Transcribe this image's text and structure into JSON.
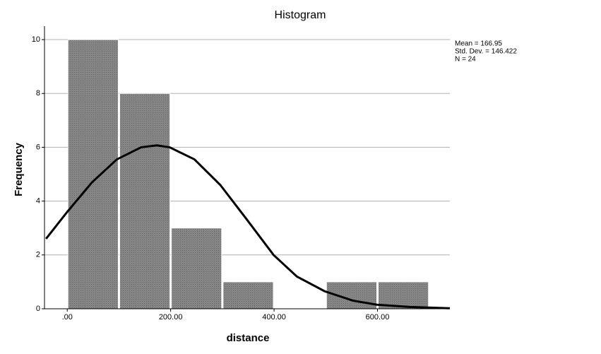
{
  "chart_data": {
    "type": "histogram",
    "title": "Histogram",
    "x_label": "distance",
    "y_label": "Frequency",
    "bins": [
      0,
      100,
      200,
      300,
      400,
      500,
      600,
      700
    ],
    "counts": [
      10,
      8,
      3,
      1,
      0,
      1,
      1
    ],
    "color": "#858585",
    "xlim": [
      -44,
      740
    ],
    "ylim": [
      0,
      10.5
    ],
    "xticks": [
      {
        "value": 0,
        "label": ".00"
      },
      {
        "value": 200,
        "label": "200.00"
      },
      {
        "value": 400,
        "label": "400.00"
      },
      {
        "value": 600,
        "label": "600.00"
      }
    ],
    "yticks": [
      0,
      2,
      4,
      6,
      8,
      10
    ],
    "grid": true,
    "curve": {
      "color": "#000000",
      "x": [
        -41,
        0,
        48,
        96,
        143,
        173,
        198,
        246,
        296,
        348,
        399,
        444,
        498,
        553,
        599,
        662,
        740
      ],
      "values": [
        2.6,
        3.6,
        4.7,
        5.55,
        6.0,
        6.07,
        6.0,
        5.55,
        4.6,
        3.3,
        2.0,
        1.2,
        0.65,
        0.3,
        0.15,
        0.07,
        0.02
      ]
    },
    "annotations": [
      "Mean = 166.95",
      "Std. Dev. = 146.422",
      "N = 24"
    ]
  }
}
